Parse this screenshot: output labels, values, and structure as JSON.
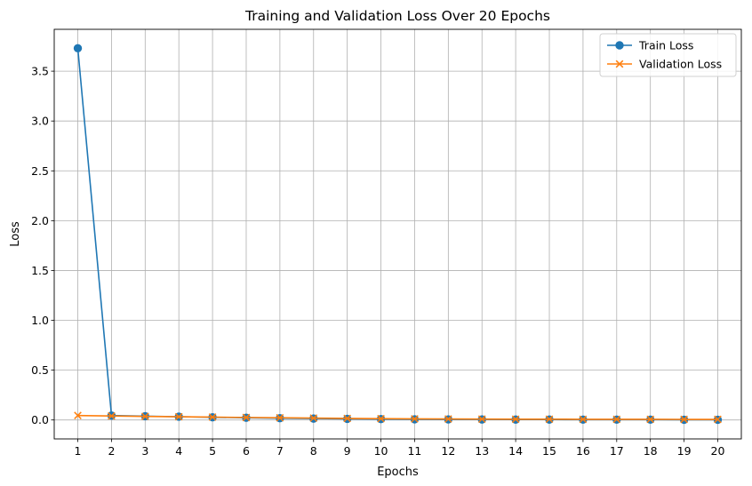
{
  "chart_data": {
    "type": "line",
    "title": "Training and Validation Loss Over 20 Epochs",
    "xlabel": "Epochs",
    "ylabel": "Loss",
    "x": [
      1,
      2,
      3,
      4,
      5,
      6,
      7,
      8,
      9,
      10,
      11,
      12,
      13,
      14,
      15,
      16,
      17,
      18,
      19,
      20
    ],
    "xticks": [
      "1",
      "2",
      "3",
      "4",
      "5",
      "6",
      "7",
      "8",
      "9",
      "10",
      "11",
      "12",
      "13",
      "14",
      "15",
      "16",
      "17",
      "18",
      "19",
      "20"
    ],
    "yticks": [
      0.0,
      0.5,
      1.0,
      1.5,
      2.0,
      2.5,
      3.0,
      3.5
    ],
    "ytick_labels": [
      "0.0",
      "0.5",
      "1.0",
      "1.5",
      "2.0",
      "2.5",
      "3.0",
      "3.5"
    ],
    "xlim": [
      0.3,
      20.7
    ],
    "ylim": [
      -0.19,
      3.92
    ],
    "grid": true,
    "legend_position": "top-right",
    "series": [
      {
        "name": "Train Loss",
        "color": "#1f77b4",
        "marker": "circle",
        "values": [
          3.73,
          0.045,
          0.038,
          0.033,
          0.027,
          0.022,
          0.018,
          0.014,
          0.011,
          0.009,
          0.007,
          0.006,
          0.005,
          0.004,
          0.004,
          0.003,
          0.003,
          0.003,
          0.002,
          0.002
        ]
      },
      {
        "name": "Validation Loss",
        "color": "#ff7f0e",
        "marker": "x",
        "values": [
          0.045,
          0.04,
          0.036,
          0.032,
          0.029,
          0.025,
          0.022,
          0.019,
          0.016,
          0.013,
          0.011,
          0.01,
          0.009,
          0.008,
          0.008,
          0.007,
          0.007,
          0.007,
          0.006,
          0.006
        ]
      }
    ]
  }
}
